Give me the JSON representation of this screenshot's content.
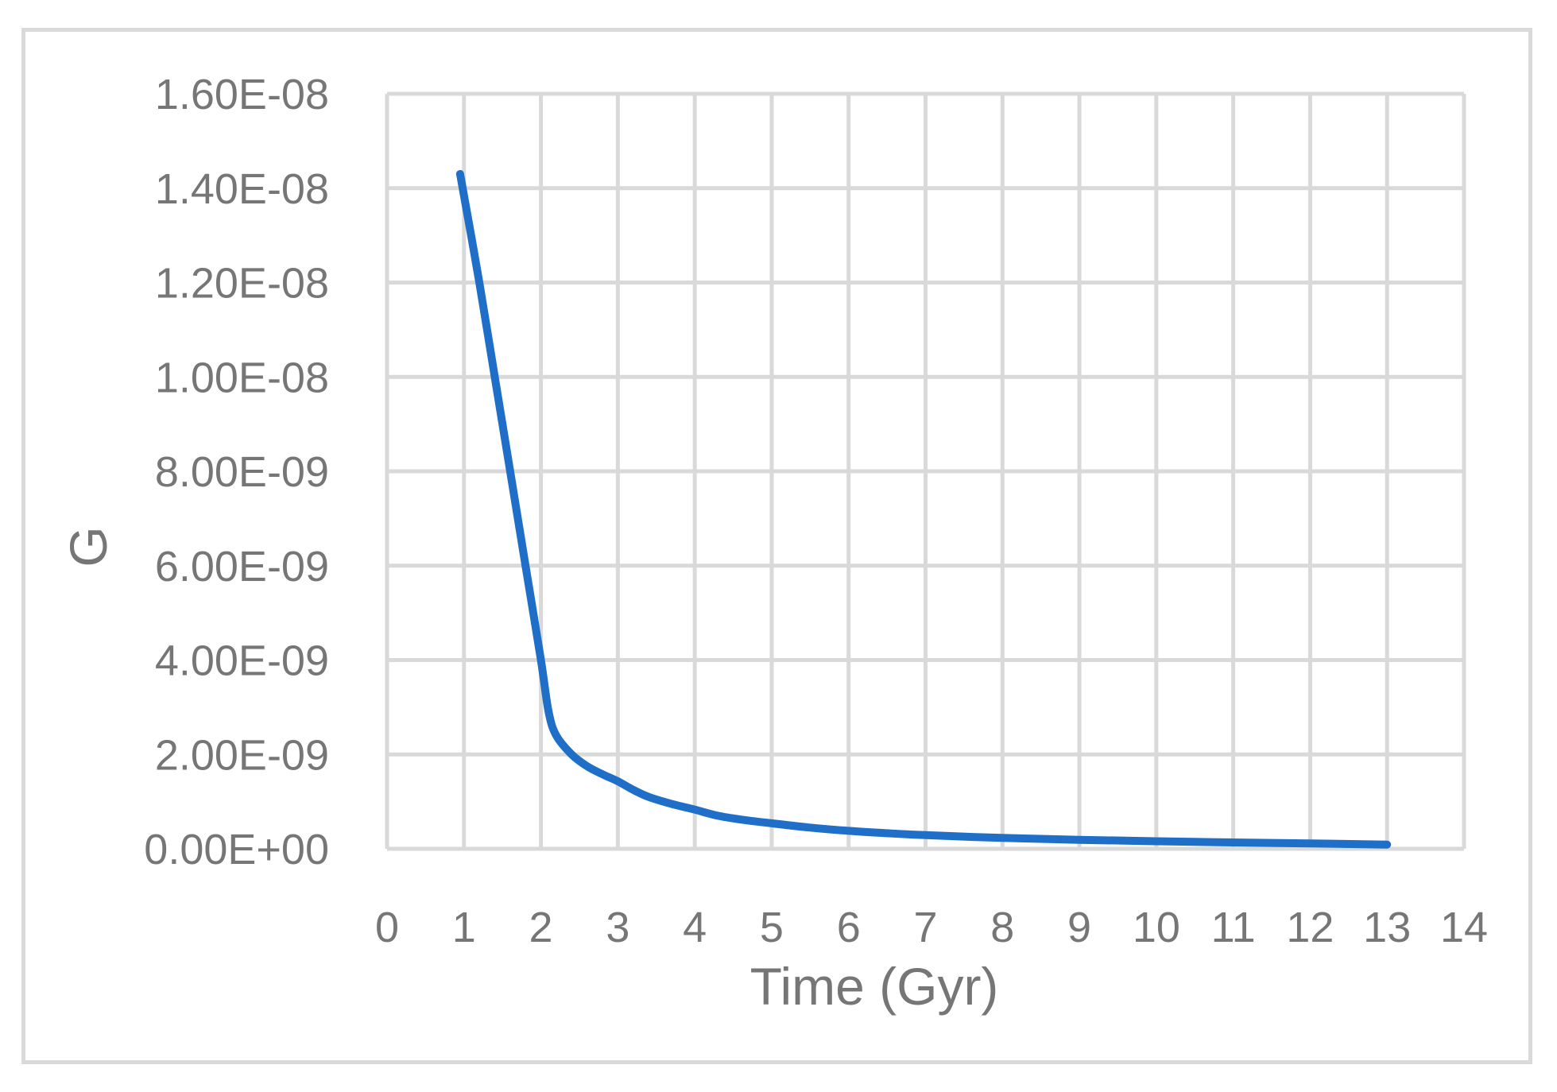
{
  "chart_data": {
    "type": "line",
    "title": "",
    "xlabel": "Time (Gyr)",
    "ylabel": "G",
    "xlim": [
      0,
      14
    ],
    "ylim": [
      0,
      1.6e-08
    ],
    "x_ticks": [
      "0",
      "1",
      "2",
      "3",
      "4",
      "5",
      "6",
      "7",
      "8",
      "9",
      "10",
      "11",
      "12",
      "13",
      "14"
    ],
    "y_ticks": [
      "0.00E+00",
      "2.00E-09",
      "4.00E-09",
      "6.00E-09",
      "8.00E-09",
      "1.00E-08",
      "1.20E-08",
      "1.40E-08",
      "1.60E-08"
    ],
    "grid": true,
    "legend": "none",
    "series": [
      {
        "color": "#1f6fc8",
        "x": [
          0.95,
          1.2,
          1.4,
          1.6,
          1.8,
          2.0,
          2.1,
          2.2,
          2.4,
          2.6,
          2.8,
          3.0,
          3.2,
          3.4,
          3.7,
          4.0,
          4.3,
          4.6,
          5.0,
          5.5,
          6.0,
          6.5,
          7.0,
          8.0,
          9.0,
          10.0,
          11.0,
          12.0,
          13.0
        ],
        "y": [
          1.43e-08,
          1.2e-08,
          1e-08,
          8e-09,
          6e-09,
          4e-09,
          2.9e-09,
          2.4e-09,
          2e-09,
          1.75e-09,
          1.58e-09,
          1.43e-09,
          1.25e-09,
          1.1e-09,
          9.5e-10,
          8.3e-10,
          7e-10,
          6.2e-10,
          5.4e-10,
          4.5e-10,
          3.8e-10,
          3.3e-10,
          2.9e-10,
          2.3e-10,
          1.9e-10,
          1.6e-10,
          1.35e-10,
          1.15e-10,
          9e-11
        ]
      }
    ]
  }
}
